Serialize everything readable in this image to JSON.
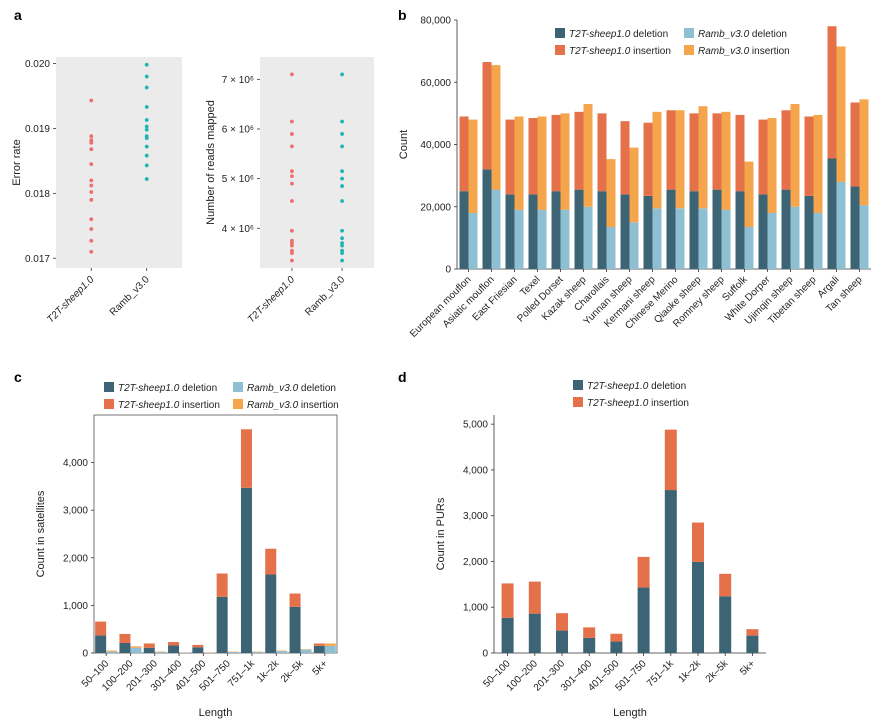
{
  "colors": {
    "t2t_del": "#3d6474",
    "t2t_ins": "#e4714a",
    "ramb_del": "#8fbfd3",
    "ramb_ins": "#f5a54b",
    "pt_t2t": "#ec6f6b",
    "pt_ramb": "#1fb5b3",
    "panel_bg": "#ebebeb"
  },
  "panel_labels": {
    "a": "a",
    "b": "b",
    "c": "c",
    "d": "d"
  },
  "legend": {
    "t2t_name": "T2T-sheep1.0",
    "ramb_name": "Ramb_v3.0",
    "deletion": " deletion",
    "insertion": " insertion"
  },
  "chart_data": [
    {
      "id": "a1",
      "type": "scatter",
      "title": "",
      "xlabel": "",
      "ylabel": "Error rate",
      "categories": [
        "T2T-sheep1.0",
        "Ramb_v3.0"
      ],
      "ylim": [
        0.01685,
        0.0201
      ],
      "yticks": [
        0.017,
        0.018,
        0.019,
        0.02
      ],
      "ytick_labels": [
        "0.017",
        "0.018",
        "0.019",
        "0.020"
      ],
      "series": [
        {
          "name": "T2T-sheep1.0",
          "values": [
            0.01943,
            0.01888,
            0.01882,
            0.0188,
            0.01878,
            0.01868,
            0.01845,
            0.0182,
            0.01812,
            0.01802,
            0.0179,
            0.0176,
            0.01745,
            0.01727,
            0.0171
          ]
        },
        {
          "name": "Ramb_v3.0",
          "values": [
            0.01998,
            0.0198,
            0.01963,
            0.01933,
            0.01913,
            0.01903,
            0.01898,
            0.01888,
            0.01885,
            0.01872,
            0.01858,
            0.01843,
            0.01822
          ]
        }
      ]
    },
    {
      "id": "a2",
      "type": "scatter",
      "title": "",
      "xlabel": "",
      "ylabel": "Number of reads mapped",
      "categories": [
        "T2T-sheep1.0",
        "Ramb_v3.0"
      ],
      "ylim": [
        3200000,
        7450000
      ],
      "yticks": [
        4000000,
        5000000,
        6000000,
        7000000
      ],
      "ytick_labels": [
        "4 × 10⁶",
        "5 × 10⁶",
        "6 × 10⁶",
        "7 × 10⁶"
      ],
      "series": [
        {
          "name": "T2T-sheep1.0",
          "values": [
            7100000,
            6150000,
            5900000,
            5650000,
            5150000,
            5050000,
            4900000,
            4550000,
            3950000,
            3750000,
            3700000,
            3650000,
            3550000,
            3500000,
            3350000
          ]
        },
        {
          "name": "Ramb_v3.0",
          "values": [
            7100000,
            6150000,
            5900000,
            5650000,
            5150000,
            5000000,
            4850000,
            4550000,
            3950000,
            3800000,
            3700000,
            3650000,
            3550000,
            3500000,
            3350000
          ]
        }
      ]
    },
    {
      "id": "b",
      "type": "bar",
      "title": "",
      "xlabel": "",
      "ylabel": "Count",
      "ylim": [
        0,
        80000
      ],
      "yticks": [
        0,
        20000,
        40000,
        60000,
        80000
      ],
      "ytick_labels": [
        "0",
        "20,000",
        "40,000",
        "60,000",
        "80,000"
      ],
      "categories": [
        "European mouflon",
        "Asiatic mouflon",
        "East Friesian",
        "Texel",
        "Polled Dorset",
        "Kazak sheep",
        "Charollais",
        "Yunnan sheep",
        "Kermani sheep",
        "Chinese Merino",
        "Qiaoke sheep",
        "Romney sheep",
        "Suffolk",
        "White Dorper",
        "Ujimqin sheep",
        "Tibetan sheep",
        "Argali",
        "Tan sheep"
      ],
      "series": [
        {
          "name": "T2T-sheep1.0 deletion",
          "values": [
            25000,
            32000,
            24000,
            24000,
            25000,
            25500,
            25000,
            24000,
            23500,
            25500,
            25000,
            25500,
            25000,
            24000,
            25500,
            23500,
            35500,
            26500
          ]
        },
        {
          "name": "T2T-sheep1.0 insertion",
          "values": [
            24000,
            34500,
            24000,
            24500,
            24500,
            25000,
            25000,
            23500,
            23500,
            25500,
            25000,
            24500,
            24500,
            24000,
            25500,
            25500,
            42500,
            27000
          ]
        },
        {
          "name": "Ramb_v3.0 deletion",
          "values": [
            18000,
            25500,
            19000,
            19000,
            19000,
            20000,
            13500,
            15000,
            19500,
            19500,
            19500,
            19000,
            13500,
            18000,
            20000,
            18000,
            28000,
            20500
          ]
        },
        {
          "name": "Ramb_v3.0 insertion",
          "values": [
            30000,
            40000,
            30000,
            30000,
            31000,
            33000,
            21800,
            24000,
            31000,
            31500,
            32800,
            31500,
            21000,
            30500,
            33000,
            31500,
            43500,
            34000
          ]
        }
      ]
    },
    {
      "id": "c",
      "type": "bar",
      "title": "",
      "xlabel": "Length",
      "ylabel": "Count in satellites",
      "ylim": [
        0,
        5000
      ],
      "yticks": [
        0,
        1000,
        2000,
        3000,
        4000
      ],
      "ytick_labels": [
        "0",
        "1,000",
        "2,000",
        "3,000",
        "4,000"
      ],
      "categories": [
        "50–100",
        "100–200",
        "201–300",
        "301–400",
        "401–500",
        "501–750",
        "751–1k",
        "1k–2k",
        "2k–5k",
        "5k+"
      ],
      "series": [
        {
          "name": "T2T-sheep1.0 deletion",
          "values": [
            370,
            210,
            110,
            160,
            120,
            1180,
            3470,
            1650,
            970,
            150
          ]
        },
        {
          "name": "T2T-sheep1.0 insertion",
          "values": [
            290,
            190,
            90,
            70,
            50,
            490,
            1230,
            540,
            280,
            50
          ]
        },
        {
          "name": "Ramb_v3.0 deletion",
          "values": [
            30,
            110,
            20,
            5,
            5,
            20,
            20,
            40,
            70,
            150
          ]
        },
        {
          "name": "Ramb_v3.0 insertion",
          "values": [
            20,
            30,
            10,
            5,
            5,
            10,
            10,
            10,
            10,
            50
          ]
        }
      ]
    },
    {
      "id": "d",
      "type": "bar",
      "title": "",
      "xlabel": "Length",
      "ylabel": "Count in PURs",
      "ylim": [
        0,
        5200
      ],
      "yticks": [
        0,
        1000,
        2000,
        3000,
        4000,
        5000
      ],
      "ytick_labels": [
        "0",
        "1,000",
        "2,000",
        "3,000",
        "4,000",
        "5,000"
      ],
      "categories": [
        "50–100",
        "100–200",
        "201–300",
        "301–400",
        "401–500",
        "501–750",
        "751–1k",
        "1k–2k",
        "2k–5k",
        "5k+"
      ],
      "series": [
        {
          "name": "T2T-sheep1.0 deletion",
          "values": [
            770,
            860,
            490,
            330,
            250,
            1430,
            3560,
            1990,
            1240,
            380
          ]
        },
        {
          "name": "T2T-sheep1.0 insertion",
          "values": [
            750,
            700,
            380,
            230,
            170,
            670,
            1320,
            860,
            490,
            140
          ]
        }
      ]
    }
  ]
}
